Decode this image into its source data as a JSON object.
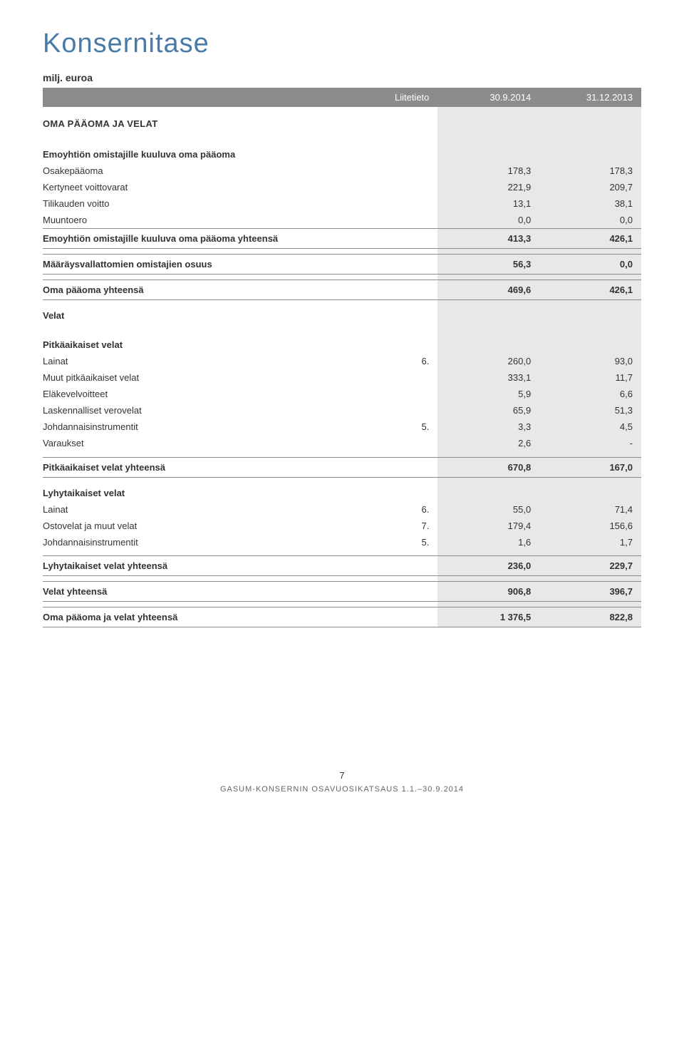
{
  "colors": {
    "title": "#4a7ba8",
    "header_bg": "#8a8c8e",
    "header_fg": "#ffffff",
    "highlight_bg": "#e8e8e8",
    "rule": "#8a8c8e",
    "text": "#333333",
    "footer": "#666666",
    "background": "#ffffff"
  },
  "typography": {
    "title_fontsize_pt": 29,
    "body_fontsize_pt": 10,
    "footer_fontsize_pt": 8
  },
  "page": {
    "title": "Konsernitase",
    "subtitle": "milj. euroa",
    "footer_page": "7",
    "footer_text": "GASUM-KONSERNIN OSAVUOSIKATSAUS 1.1.–30.9.2014"
  },
  "table": {
    "columns": {
      "note": "Liitetieto",
      "col1": "30.9.2014",
      "col2": "31.12.2013"
    },
    "section_main": "OMA PÄÄOMA JA VELAT",
    "equity_parent_heading": "Emoyhtiön omistajille kuuluva oma pääoma",
    "rows_equity": [
      {
        "label": "Osakepääoma",
        "v1": "178,3",
        "v2": "178,3"
      },
      {
        "label": "Kertyneet voittovarat",
        "v1": "221,9",
        "v2": "209,7"
      },
      {
        "label": "Tilikauden voitto",
        "v1": "13,1",
        "v2": "38,1"
      },
      {
        "label": "Muuntoero",
        "v1": "0,0",
        "v2": "0,0"
      }
    ],
    "equity_parent_total": {
      "label": "Emoyhtiön omistajille kuuluva oma pääoma yhteensä",
      "v1": "413,3",
      "v2": "426,1"
    },
    "minority": {
      "label": "Määräysvallattomien omistajien osuus",
      "v1": "56,3",
      "v2": "0,0"
    },
    "equity_total": {
      "label": "Oma pääoma yhteensä",
      "v1": "469,6",
      "v2": "426,1"
    },
    "liab_heading": "Velat",
    "longterm_heading": "Pitkäaikaiset velat",
    "rows_longterm": [
      {
        "label": "Lainat",
        "note": "6.",
        "v1": "260,0",
        "v2": "93,0"
      },
      {
        "label": "Muut pitkäaikaiset velat",
        "v1": "333,1",
        "v2": "11,7"
      },
      {
        "label": "Eläkevelvoitteet",
        "v1": "5,9",
        "v2": "6,6"
      },
      {
        "label": "Laskennalliset verovelat",
        "v1": "65,9",
        "v2": "51,3"
      },
      {
        "label": "Johdannaisinstrumentit",
        "note": "5.",
        "v1": "3,3",
        "v2": "4,5"
      },
      {
        "label": "Varaukset",
        "v1": "2,6",
        "v2": "-"
      }
    ],
    "longterm_total": {
      "label": "Pitkäaikaiset velat yhteensä",
      "v1": "670,8",
      "v2": "167,0"
    },
    "shortterm_heading": "Lyhytaikaiset velat",
    "rows_shortterm": [
      {
        "label": "Lainat",
        "note": "6.",
        "v1": "55,0",
        "v2": "71,4"
      },
      {
        "label": "Ostovelat ja muut velat",
        "note": "7.",
        "v1": "179,4",
        "v2": "156,6"
      },
      {
        "label": "Johdannaisinstrumentit",
        "note": "5.",
        "v1": "1,6",
        "v2": "1,7"
      }
    ],
    "shortterm_total": {
      "label": "Lyhytaikaiset velat yhteensä",
      "v1": "236,0",
      "v2": "229,7"
    },
    "liab_total": {
      "label": "Velat yhteensä",
      "v1": "906,8",
      "v2": "396,7"
    },
    "grand_total": {
      "label": "Oma pääoma ja velat yhteensä",
      "v1": "1 376,5",
      "v2": "822,8"
    }
  }
}
